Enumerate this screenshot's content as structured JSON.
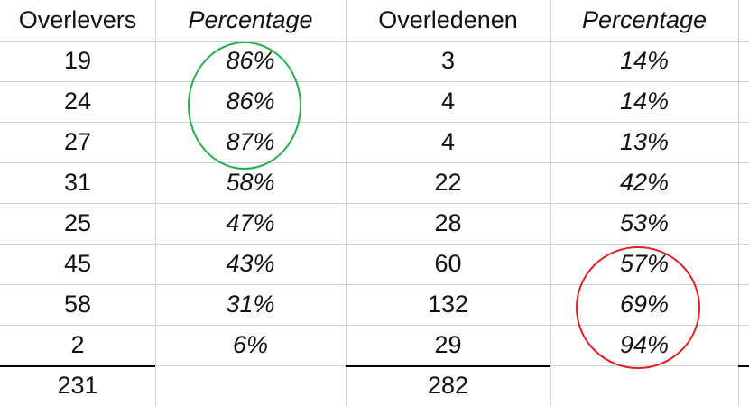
{
  "table": {
    "header": [
      "Overlevers",
      "Percentage",
      "Overledenen",
      "Percentage"
    ],
    "rows": [
      [
        "19",
        "86%",
        "3",
        "14%"
      ],
      [
        "24",
        "86%",
        "4",
        "14%"
      ],
      [
        "27",
        "87%",
        "4",
        "13%"
      ],
      [
        "31",
        "58%",
        "22",
        "42%"
      ],
      [
        "25",
        "47%",
        "28",
        "53%"
      ],
      [
        "45",
        "43%",
        "60",
        "57%"
      ],
      [
        "58",
        "31%",
        "132",
        "69%"
      ],
      [
        "2",
        "6%",
        "29",
        "94%"
      ]
    ],
    "totals": {
      "overlevers": "231",
      "overledenen": "282"
    }
  }
}
